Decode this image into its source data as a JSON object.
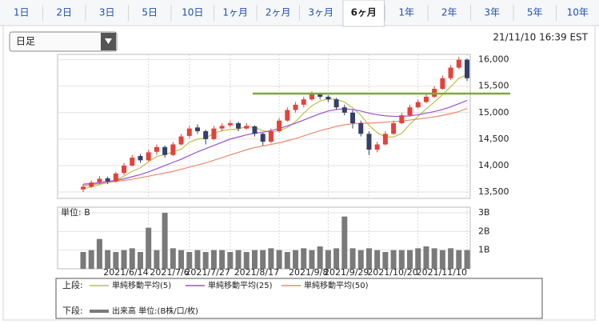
{
  "tabs": [
    {
      "label": "1日",
      "selected": false
    },
    {
      "label": "2日",
      "selected": false
    },
    {
      "label": "3日",
      "selected": false
    },
    {
      "label": "5日",
      "selected": false
    },
    {
      "label": "10日",
      "selected": false
    },
    {
      "label": "1ヶ月",
      "selected": false
    },
    {
      "label": "2ヶ月",
      "selected": false
    },
    {
      "label": "3ヶ月",
      "selected": false
    },
    {
      "label": "6ヶ月",
      "selected": true
    },
    {
      "label": "1年",
      "selected": false
    },
    {
      "label": "2年",
      "selected": false
    },
    {
      "label": "3年",
      "selected": false
    },
    {
      "label": "5年",
      "selected": false
    },
    {
      "label": "10年",
      "selected": false
    }
  ],
  "dropdown": "日足",
  "timestamp": "21/11/10 16:39 EST",
  "chart_data": [
    {
      "type": "candlestick",
      "legend_title": "上段:",
      "up_color": "#e5413b",
      "down_color": "#34406a",
      "categories": [
        null,
        null,
        null,
        null,
        null,
        null,
        null,
        null,
        "2021/6/14",
        null,
        null,
        null,
        null,
        "2021/7/6",
        null,
        null,
        null,
        null,
        "2021/7/27",
        null,
        null,
        null,
        null,
        null,
        "2021/8/17",
        null,
        null,
        null,
        null,
        null,
        "2021/9/8",
        null,
        null,
        null,
        null,
        "2021/9/29",
        null,
        null,
        null,
        null,
        null,
        "2021/10/20",
        null,
        null,
        null,
        null,
        null,
        "2021/11/10"
      ],
      "candles": [
        [
          13550,
          13650,
          13500,
          13600
        ],
        [
          13600,
          13720,
          13580,
          13680
        ],
        [
          13690,
          13800,
          13650,
          13750
        ],
        [
          13760,
          13790,
          13650,
          13700
        ],
        [
          13700,
          13880,
          13680,
          13850
        ],
        [
          13860,
          14050,
          13820,
          14000
        ],
        [
          14000,
          14200,
          13980,
          14150
        ],
        [
          14180,
          14220,
          14050,
          14100
        ],
        [
          14100,
          14300,
          14080,
          14250
        ],
        [
          14260,
          14400,
          14200,
          14350
        ],
        [
          14350,
          14380,
          14150,
          14200
        ],
        [
          14200,
          14450,
          14180,
          14400
        ],
        [
          14400,
          14600,
          14380,
          14550
        ],
        [
          14560,
          14750,
          14520,
          14700
        ],
        [
          14720,
          14780,
          14600,
          14650
        ],
        [
          14650,
          14680,
          14400,
          14500
        ],
        [
          14500,
          14750,
          14480,
          14700
        ],
        [
          14700,
          14800,
          14650,
          14750
        ],
        [
          14760,
          14850,
          14720,
          14800
        ],
        [
          14800,
          14830,
          14650,
          14700
        ],
        [
          14700,
          14800,
          14680,
          14750
        ],
        [
          14740,
          14760,
          14550,
          14600
        ],
        [
          14600,
          14620,
          14380,
          14450
        ],
        [
          14450,
          14700,
          14420,
          14650
        ],
        [
          14650,
          14900,
          14620,
          14850
        ],
        [
          14850,
          15100,
          14830,
          15050
        ],
        [
          15050,
          15200,
          15000,
          15150
        ],
        [
          15150,
          15300,
          15100,
          15250
        ],
        [
          15250,
          15400,
          15220,
          15350
        ],
        [
          15360,
          15380,
          15250,
          15300
        ],
        [
          15300,
          15330,
          15200,
          15250
        ],
        [
          15250,
          15280,
          15050,
          15100
        ],
        [
          15100,
          15150,
          14950,
          15000
        ],
        [
          15000,
          15050,
          14700,
          14800
        ],
        [
          14800,
          14850,
          14550,
          14600
        ],
        [
          14600,
          14650,
          14200,
          14300
        ],
        [
          14300,
          14450,
          14250,
          14400
        ],
        [
          14400,
          14650,
          14380,
          14600
        ],
        [
          14600,
          14850,
          14580,
          14800
        ],
        [
          14800,
          15000,
          14780,
          14950
        ],
        [
          14950,
          15150,
          14920,
          15100
        ],
        [
          15100,
          15250,
          15080,
          15200
        ],
        [
          15200,
          15350,
          15180,
          15300
        ],
        [
          15300,
          15500,
          15280,
          15450
        ],
        [
          15450,
          15700,
          15430,
          15650
        ],
        [
          15650,
          15900,
          15620,
          15850
        ],
        [
          15850,
          16050,
          15820,
          16000
        ],
        [
          16000,
          16020,
          15600,
          15650
        ]
      ],
      "series": [
        {
          "name": "単純移動平均(5)",
          "color": "#b9c24a",
          "values": [
            13560,
            13600,
            13640,
            13680,
            13720,
            13800,
            13890,
            13960,
            14070,
            14170,
            14210,
            14260,
            14310,
            14440,
            14500,
            14520,
            14610,
            14660,
            14680,
            14690,
            14740,
            14720,
            14660,
            14630,
            14660,
            14720,
            14830,
            14990,
            15130,
            15220,
            15260,
            15250,
            15200,
            15090,
            14950,
            14760,
            14620,
            14540,
            14540,
            14610,
            14780,
            14930,
            15070,
            15200,
            15340,
            15490,
            15650,
            15720
          ]
        },
        {
          "name": "単純移動平均(25)",
          "color": "#9b52d6",
          "values": [
            13650,
            13660,
            13680,
            13700,
            13720,
            13750,
            13790,
            13830,
            13880,
            13940,
            14000,
            14060,
            14120,
            14190,
            14260,
            14320,
            14380,
            14440,
            14500,
            14540,
            14580,
            14610,
            14630,
            14660,
            14700,
            14750,
            14800,
            14860,
            14920,
            14980,
            15030,
            15060,
            15070,
            15060,
            15030,
            14990,
            14960,
            14940,
            14930,
            14930,
            14940,
            14960,
            14990,
            15020,
            15060,
            15110,
            15170,
            15230
          ]
        },
        {
          "name": "単純移動平均(50)",
          "color": "#ea8a6e",
          "values": [
            13620,
            13640,
            13660,
            13680,
            13700,
            13720,
            13740,
            13770,
            13800,
            13830,
            13860,
            13890,
            13930,
            13970,
            14010,
            14050,
            14100,
            14150,
            14200,
            14250,
            14300,
            14340,
            14370,
            14400,
            14430,
            14470,
            14510,
            14560,
            14610,
            14660,
            14700,
            14740,
            14770,
            14790,
            14800,
            14800,
            14810,
            14820,
            14830,
            14840,
            14860,
            14880,
            14900,
            14920,
            14950,
            14980,
            15020,
            15080
          ]
        }
      ],
      "hline": {
        "value": 15360,
        "color": "#7aab35"
      },
      "ylim": [
        13380,
        16100
      ],
      "yticks": [
        {
          "value": 13500,
          "label": "13,500"
        },
        {
          "value": 14000,
          "label": "14,000"
        },
        {
          "value": 14500,
          "label": "14,500"
        },
        {
          "value": 15000,
          "label": "15,000"
        },
        {
          "value": 15500,
          "label": "15,500"
        },
        {
          "value": 16000,
          "label": "16,000"
        }
      ],
      "grid": true
    },
    {
      "type": "bar",
      "title": "単位: B",
      "legend_title": "下段:",
      "name": "出来高 単位:(B株/口/枚)",
      "color": "#7a7a7a",
      "values": [
        0.9,
        1.0,
        1.6,
        1.0,
        0.9,
        1.0,
        1.1,
        0.9,
        2.2,
        1.0,
        3.0,
        1.1,
        1.0,
        0.9,
        1.0,
        0.9,
        1.0,
        1.0,
        0.9,
        1.0,
        0.9,
        1.0,
        1.0,
        1.1,
        1.0,
        0.9,
        1.0,
        1.1,
        1.0,
        1.2,
        1.0,
        1.1,
        2.8,
        1.1,
        1.0,
        1.1,
        1.0,
        0.9,
        1.0,
        1.0,
        1.0,
        1.1,
        1.2,
        1.1,
        1.0,
        1.1,
        1.0,
        1.0
      ],
      "ylim": [
        0,
        3.3
      ],
      "yticks": [
        {
          "value": 1,
          "label": "1B"
        },
        {
          "value": 2,
          "label": "2B"
        },
        {
          "value": 3,
          "label": "3B"
        }
      ],
      "grid": true
    }
  ]
}
